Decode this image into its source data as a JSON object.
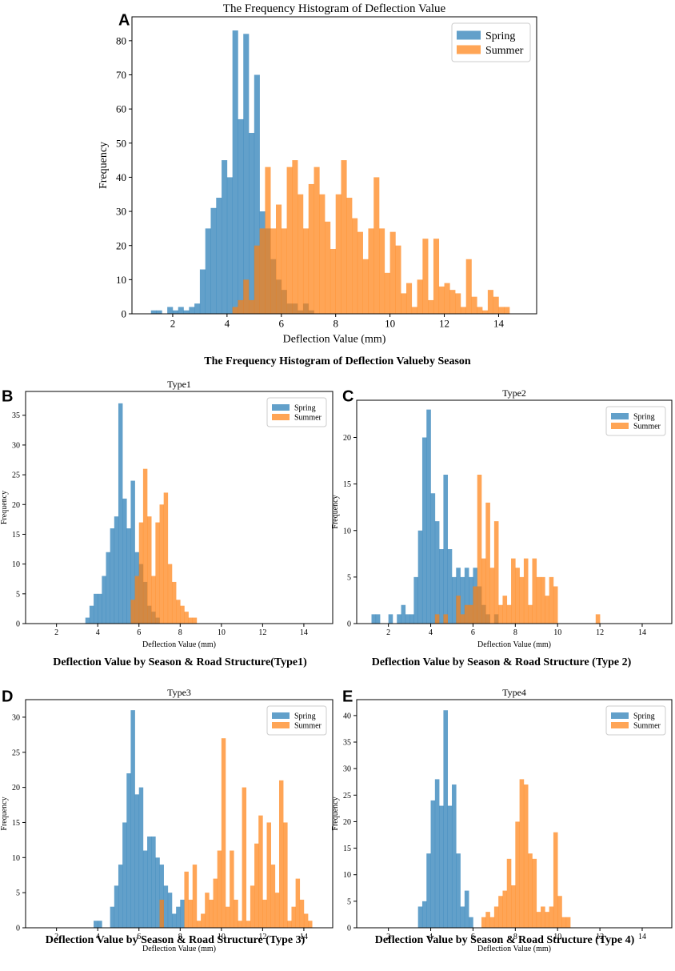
{
  "colors": {
    "spring": "#1f77b4",
    "summer": "#ff7f0e"
  },
  "chart_data": [
    {
      "id": "A",
      "panel_letter": "A",
      "type": "bar",
      "title": "The Frequency Histogram of Deflection Value",
      "caption": "The Frequency Histogram of Deflection Valueby Season",
      "xlabel": "Deflection Value (mm)",
      "ylabel": "Frequency",
      "xlim": [
        0.5,
        15.4
      ],
      "ylim": [
        0,
        87
      ],
      "xticks": [
        2,
        4,
        6,
        8,
        10,
        12,
        14
      ],
      "yticks": [
        0,
        10,
        20,
        30,
        40,
        50,
        60,
        70,
        80
      ],
      "legend": "top-right",
      "series": [
        {
          "name": "Spring",
          "bin_start": 1.2,
          "bin_width": 0.2,
          "values": [
            1,
            1,
            0,
            2,
            1,
            2,
            1,
            2,
            3,
            13,
            25,
            31,
            34,
            45,
            40,
            83,
            57,
            82,
            53,
            70,
            30,
            25,
            16,
            10,
            7,
            3,
            3,
            1,
            3,
            1,
            0,
            0,
            0,
            0,
            0,
            0,
            0,
            0,
            0,
            0,
            0,
            0,
            0,
            0,
            0,
            0,
            0,
            0,
            0,
            0,
            0,
            0,
            0,
            0,
            0,
            0,
            0,
            0,
            0,
            0,
            0,
            0,
            0,
            0,
            0,
            0
          ]
        },
        {
          "name": "Summer",
          "bin_start": 1.2,
          "bin_width": 0.2,
          "values": [
            0,
            0,
            0,
            0,
            0,
            0,
            0,
            0,
            0,
            0,
            0,
            0,
            0,
            0,
            0,
            2,
            4,
            10,
            4,
            20,
            25,
            43,
            25,
            32,
            25,
            43,
            45,
            35,
            25,
            38,
            43,
            35,
            27,
            19,
            35,
            45,
            34,
            28,
            24,
            16,
            25,
            40,
            25,
            12,
            24,
            20,
            6,
            9,
            2,
            10,
            22,
            4,
            22,
            8,
            9,
            7,
            6,
            2,
            16,
            5,
            2,
            1,
            7,
            5,
            2,
            2
          ]
        }
      ]
    },
    {
      "id": "B",
      "panel_letter": "B",
      "type": "bar",
      "title": "Type1",
      "caption": "Deflection Value by Season & Road Structure(Type1)",
      "xlabel": "Deflection Value (mm)",
      "ylabel": "Frequency",
      "xlim": [
        0.5,
        15.4
      ],
      "ylim": [
        0,
        39
      ],
      "xticks": [
        2,
        4,
        6,
        8,
        10,
        12,
        14
      ],
      "yticks": [
        0,
        5,
        10,
        15,
        20,
        25,
        30,
        35
      ],
      "legend": "top-right",
      "series": [
        {
          "name": "Spring",
          "bin_start": 3.4,
          "bin_width": 0.2,
          "values": [
            1,
            3,
            5,
            5,
            8,
            12,
            16,
            18,
            37,
            21,
            16,
            24,
            12,
            10,
            7,
            3,
            2,
            1,
            0
          ]
        },
        {
          "name": "Summer",
          "bin_start": 3.4,
          "bin_width": 0.2,
          "values": [
            0,
            0,
            0,
            0,
            0,
            0,
            0,
            0,
            0,
            0,
            0,
            4,
            8,
            17,
            26,
            18,
            8,
            17,
            20,
            22,
            10,
            7,
            4,
            3,
            2,
            1,
            1
          ]
        }
      ]
    },
    {
      "id": "C",
      "panel_letter": "C",
      "type": "bar",
      "title": "Type2",
      "caption": "Deflection Value by Season & Road Structure (Type 2)",
      "xlabel": "Deflection Value (mm)",
      "ylabel": "Frequency",
      "xlim": [
        0.5,
        15.4
      ],
      "ylim": [
        0,
        24
      ],
      "xticks": [
        2,
        4,
        6,
        8,
        10,
        12,
        14
      ],
      "yticks": [
        0,
        5,
        10,
        15,
        20
      ],
      "legend": "top-right",
      "series": [
        {
          "name": "Spring",
          "bin_start": 1.2,
          "bin_width": 0.2,
          "values": [
            1,
            1,
            0,
            0,
            1,
            0,
            1,
            2,
            1,
            1,
            5,
            10,
            20,
            23,
            14,
            11,
            8,
            16,
            8,
            5,
            6,
            5,
            6,
            5,
            6,
            4,
            2,
            1,
            0,
            1
          ]
        },
        {
          "name": "Summer",
          "bin_start": 3.4,
          "bin_width": 0.2,
          "values": [
            0,
            0,
            0,
            0,
            1,
            0,
            1,
            0,
            0,
            3,
            1,
            2,
            2,
            4,
            16,
            7,
            13,
            6,
            11,
            2,
            3,
            2,
            7,
            6,
            5,
            7,
            2,
            7,
            5,
            5,
            3,
            5,
            4,
            0,
            0,
            0,
            0,
            0,
            0,
            0,
            0,
            0,
            1
          ]
        }
      ]
    },
    {
      "id": "D",
      "panel_letter": "D",
      "type": "bar",
      "title": "Type3",
      "caption": "Deflection Value by Season & Road Structure (Type 3)",
      "xlabel": "Deflection Value (mm)",
      "ylabel": "Frequency",
      "xlim": [
        0.5,
        15.4
      ],
      "ylim": [
        0,
        32.5
      ],
      "xticks": [
        2,
        4,
        6,
        8,
        10,
        12,
        14
      ],
      "yticks": [
        0,
        5,
        10,
        15,
        20,
        25,
        30
      ],
      "legend": "top-right",
      "series": [
        {
          "name": "Spring",
          "bin_start": 3.8,
          "bin_width": 0.2,
          "values": [
            1,
            1,
            0,
            0,
            3,
            6,
            9,
            15,
            22,
            31,
            19,
            20,
            11,
            13,
            13,
            10,
            9,
            6,
            5,
            2,
            3,
            4,
            0
          ]
        },
        {
          "name": "Summer",
          "bin_start": 6.8,
          "bin_width": 0.2,
          "values": [
            0,
            4,
            0,
            0,
            0,
            0,
            0,
            8,
            4,
            9,
            1,
            2,
            5,
            4,
            7,
            11,
            27,
            3,
            11,
            4,
            1,
            20,
            1,
            6,
            12,
            16,
            4,
            15,
            9,
            5,
            21,
            15,
            1,
            3,
            7,
            4,
            2,
            1
          ]
        }
      ]
    },
    {
      "id": "E",
      "panel_letter": "E",
      "type": "bar",
      "title": "Type4",
      "caption": "Deflection Value by Season & Road Structure (Type 4)",
      "xlabel": "Deflection Value (mm)",
      "ylabel": "Frequency",
      "xlim": [
        0.5,
        15.4
      ],
      "ylim": [
        0,
        43
      ],
      "xticks": [
        2,
        4,
        6,
        8,
        10,
        12,
        14
      ],
      "yticks": [
        0,
        5,
        10,
        15,
        20,
        25,
        30,
        35,
        40
      ],
      "legend": "top-right",
      "series": [
        {
          "name": "Spring",
          "bin_start": 3.4,
          "bin_width": 0.2,
          "values": [
            4,
            5,
            14,
            24,
            28,
            23,
            41,
            23,
            27,
            14,
            4,
            7,
            2
          ]
        },
        {
          "name": "Summer",
          "bin_start": 6.4,
          "bin_width": 0.2,
          "values": [
            2,
            3,
            2,
            4,
            6,
            7,
            13,
            8,
            20,
            28,
            27,
            14,
            13,
            3,
            4,
            3,
            4,
            18,
            6,
            2,
            2
          ]
        }
      ]
    }
  ]
}
